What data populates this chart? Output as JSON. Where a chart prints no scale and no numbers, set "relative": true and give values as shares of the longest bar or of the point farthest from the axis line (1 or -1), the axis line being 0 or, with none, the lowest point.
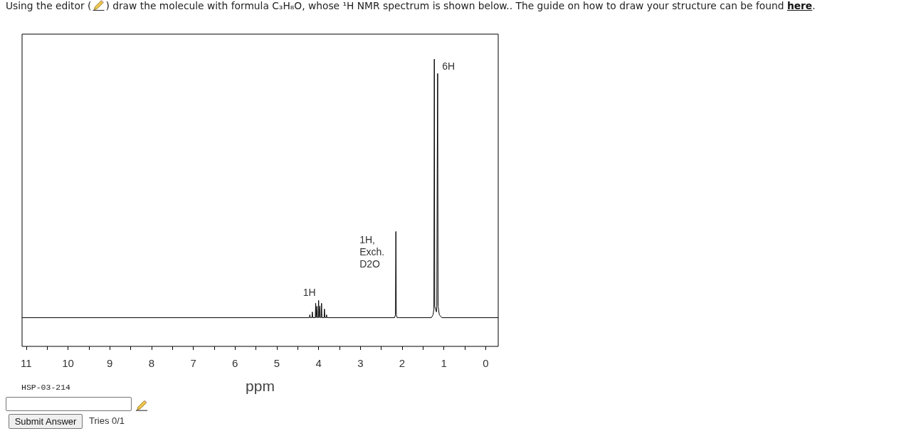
{
  "chart_data": {
    "type": "line",
    "title": "Using the editor ( ) draw the molecule with formula C₃H₈O, whose ¹H NMR spectrum is shown below.. The guide on how to draw your structure can be found here.",
    "xlabel": "ppm",
    "annotations": [
      {
        "text": "6H",
        "x": 1.23,
        "y": 1.0
      },
      {
        "text": "1H,\nExch.\nD2O",
        "x": 2.15,
        "y": 0.4
      },
      {
        "text": "1H",
        "x": 4.0,
        "y": 0.16
      },
      "HSP-03-214",
      "Submit Answer",
      "Tries 0/1"
    ],
    "x": [
      11.1,
      4.22,
      4.21,
      4.2,
      4.16,
      4.15,
      4.14,
      4.08,
      4.07,
      4.06,
      4.05,
      4.04,
      4.03,
      4.01,
      4.0,
      3.99,
      3.98,
      3.97,
      3.96,
      3.94,
      3.93,
      3.92,
      3.87,
      3.86,
      3.85,
      3.82,
      3.81,
      3.8,
      2.18,
      2.16,
      2.15,
      2.14,
      2.12,
      2.08,
      1.3,
      1.26,
      1.24,
      1.23,
      1.22,
      1.18,
      1.17,
      1.16,
      1.15,
      1.14,
      1.11,
      1.05,
      -0.3
    ],
    "values": [
      0.1,
      0.1,
      0.11,
      0.1,
      0.1,
      0.12,
      0.1,
      0.1,
      0.15,
      0.1,
      0.1,
      0.14,
      0.1,
      0.1,
      0.16,
      0.1,
      0.1,
      0.14,
      0.1,
      0.1,
      0.15,
      0.1,
      0.1,
      0.13,
      0.1,
      0.1,
      0.11,
      0.1,
      0.1,
      0.11,
      0.4,
      0.11,
      0.1,
      0.1,
      0.1,
      0.11,
      0.13,
      1.0,
      0.14,
      0.12,
      0.14,
      0.62,
      0.95,
      0.14,
      0.11,
      0.1,
      0.1
    ],
    "color": "#000000",
    "relative": true,
    "xlim": [
      11.1,
      -0.3
    ],
    "xticks": [
      11,
      {
        "value": 10.5,
        "label": null
      },
      10,
      {
        "value": 9.5,
        "label": null
      },
      9,
      {
        "value": 8.5,
        "label": null
      },
      8,
      {
        "value": 7.5,
        "label": null
      },
      7,
      {
        "value": 6.5,
        "label": null
      },
      6,
      {
        "value": 5.5,
        "label": null
      },
      5,
      {
        "value": 4.5,
        "label": null
      },
      4,
      {
        "value": 3.5,
        "label": null
      },
      3,
      {
        "value": 2.5,
        "label": null
      },
      2,
      {
        "value": 1.5,
        "label": null
      },
      1,
      {
        "value": 0.5,
        "label": null
      },
      0
    ]
  }
}
